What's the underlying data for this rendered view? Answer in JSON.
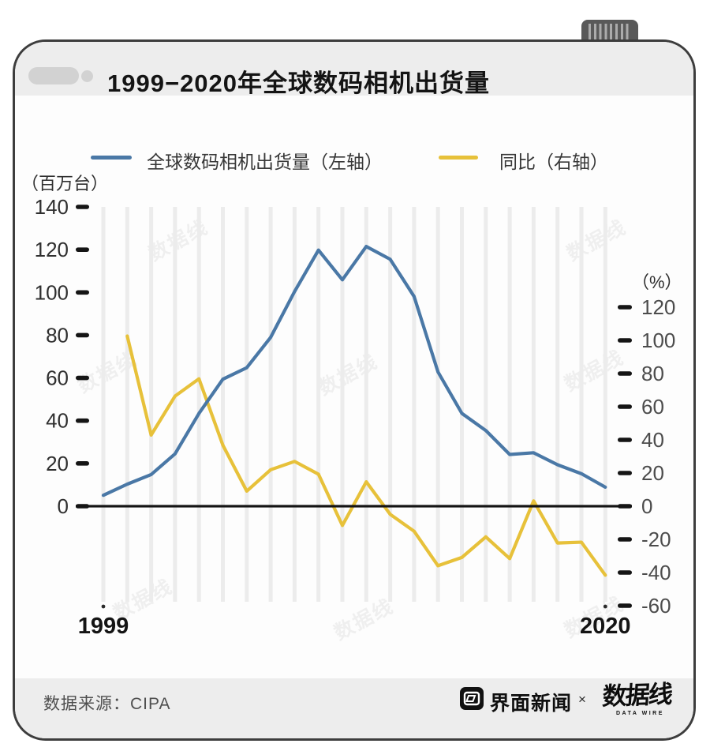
{
  "title": "1999−2020年全球数码相机出货量",
  "legend": {
    "shipments_label": "全球数码相机出货量（左轴）",
    "shipments_color": "#4a78a6",
    "yoy_label": "同比（右轴）",
    "yoy_color": "#e7c13a"
  },
  "left_axis": {
    "unit": "（百万台）",
    "ticks": [
      140,
      120,
      100,
      80,
      60,
      40,
      20,
      0
    ]
  },
  "right_axis": {
    "unit": "（%）",
    "ticks": [
      120,
      100,
      80,
      60,
      40,
      20,
      0,
      -20,
      -40,
      -60
    ]
  },
  "x_axis": {
    "start_label": "1999",
    "end_label": "2020"
  },
  "watermark": "数据线",
  "footer": {
    "source": "数据来源：CIPA",
    "brand1": "界面新闻",
    "cross": "×",
    "brand2": "数据线",
    "brand2_sub": "DATA WIRE"
  },
  "chart_data": {
    "type": "line",
    "title": "1999−2020年全球数码相机出货量",
    "x": [
      1999,
      2000,
      2001,
      2002,
      2003,
      2004,
      2005,
      2006,
      2007,
      2008,
      2009,
      2010,
      2011,
      2012,
      2013,
      2014,
      2015,
      2016,
      2017,
      2018,
      2019,
      2020
    ],
    "series": [
      {
        "name": "全球数码相机出货量（左轴）",
        "axis": "left",
        "unit": "百万台",
        "color": "#4a78a6",
        "values": [
          5.1,
          10.3,
          14.8,
          24.5,
          43.4,
          59.4,
          64.8,
          79.0,
          100.4,
          119.8,
          105.9,
          121.5,
          115.5,
          98.1,
          62.8,
          43.4,
          35.4,
          24.2,
          25.0,
          19.4,
          15.2,
          8.9
        ]
      },
      {
        "name": "同比（右轴）",
        "axis": "right",
        "unit": "%",
        "color": "#e7c13a",
        "values": [
          null,
          102.6,
          42.9,
          66.4,
          76.8,
          36.8,
          9.1,
          22.0,
          27.0,
          19.3,
          -11.6,
          14.7,
          -4.9,
          -15.1,
          -35.9,
          -30.9,
          -18.5,
          -31.6,
          3.2,
          -22.2,
          -21.7,
          -41.6
        ]
      }
    ],
    "left_ylim": [
      0,
      140
    ],
    "right_ylim": [
      -60,
      120
    ],
    "grid": "vertical-bars-per-year",
    "legend_position": "top"
  }
}
